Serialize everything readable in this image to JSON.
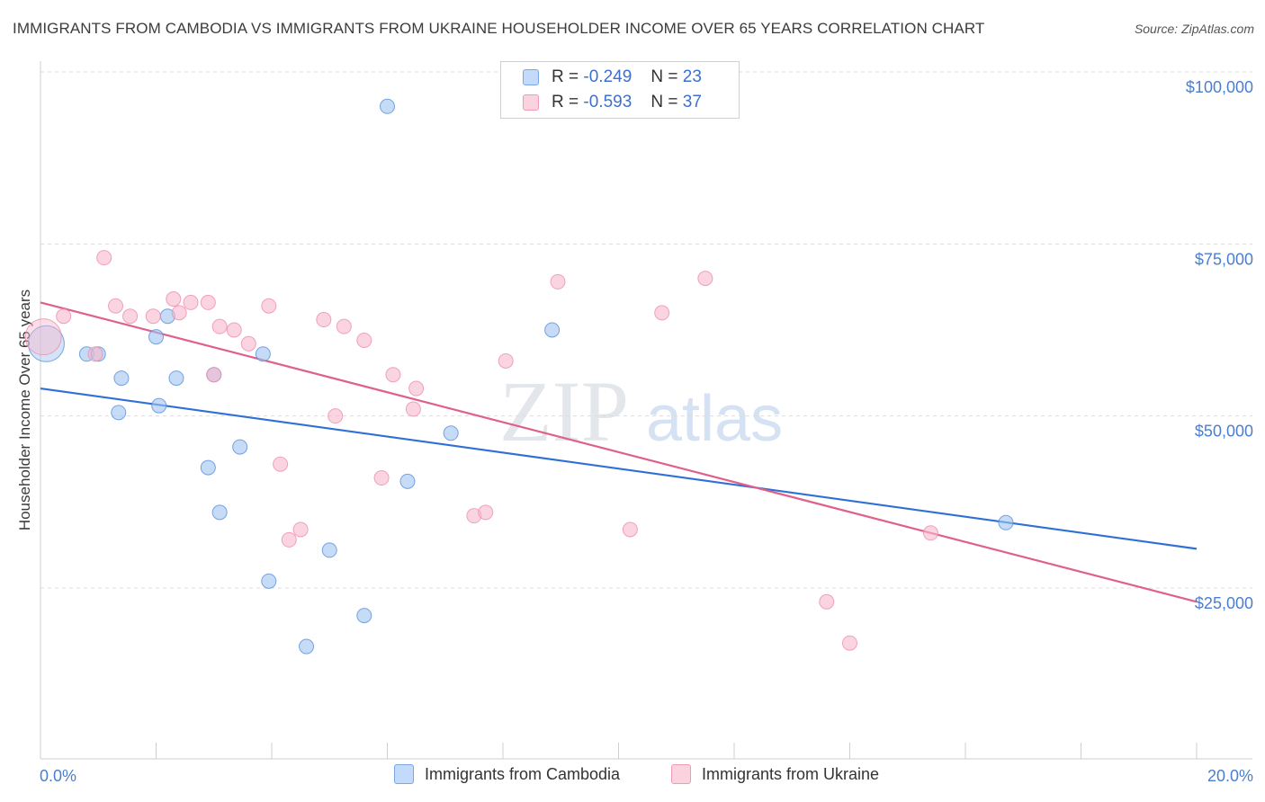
{
  "title": "IMMIGRANTS FROM CAMBODIA VS IMMIGRANTS FROM UKRAINE HOUSEHOLDER INCOME OVER 65 YEARS CORRELATION CHART",
  "source": "Source: ZipAtlas.com",
  "watermark": {
    "zip": "ZIP",
    "atlas": "atlas"
  },
  "legend": {
    "rows": [
      {
        "r_label": "R =",
        "r_value": "-0.249",
        "n_label": "N =",
        "n_value": "23",
        "color": "#9fc3f0",
        "stroke": "#6f9fe0"
      },
      {
        "r_label": "R =",
        "r_value": "-0.593",
        "n_label": "N =",
        "n_value": "37",
        "color": "#f7b8cc",
        "stroke": "#ee8fad"
      }
    ]
  },
  "bottom_legend": {
    "cambodia": "Immigrants from Cambodia",
    "ukraine": "Immigrants from Ukraine"
  },
  "chart_data": {
    "type": "scatter",
    "title": "IMMIGRANTS FROM CAMBODIA VS IMMIGRANTS FROM UKRAINE HOUSEHOLDER INCOME OVER 65 YEARS CORRELATION CHART",
    "xlabel": "",
    "ylabel": "Householder Income Over 65 years",
    "xlim": [
      0,
      20
    ],
    "ylim": [
      0,
      105000
    ],
    "x_tick_labels": [
      "0.0%",
      "20.0%"
    ],
    "y_ticks": [
      25000,
      50000,
      75000,
      100000
    ],
    "y_tick_labels": [
      "$25,000",
      "$50,000",
      "$75,000",
      "$100,000"
    ],
    "grid": true,
    "series": [
      {
        "name": "Immigrants from Cambodia",
        "color": "#9fc3f0",
        "stroke": "#5a8fdc",
        "line_color": "#2f6fd6",
        "trend": {
          "x": [
            0,
            20
          ],
          "y": [
            54000,
            30700
          ]
        },
        "points": [
          {
            "x": 0.1,
            "y": 60500,
            "big": true
          },
          {
            "x": 0.8,
            "y": 59000
          },
          {
            "x": 1.0,
            "y": 59000
          },
          {
            "x": 1.4,
            "y": 55500
          },
          {
            "x": 1.35,
            "y": 50500
          },
          {
            "x": 2.0,
            "y": 61500
          },
          {
            "x": 2.2,
            "y": 64500
          },
          {
            "x": 2.05,
            "y": 51500
          },
          {
            "x": 2.35,
            "y": 55500
          },
          {
            "x": 2.9,
            "y": 42500
          },
          {
            "x": 3.0,
            "y": 56000
          },
          {
            "x": 3.1,
            "y": 36000
          },
          {
            "x": 3.45,
            "y": 45500
          },
          {
            "x": 3.85,
            "y": 59000
          },
          {
            "x": 3.95,
            "y": 26000
          },
          {
            "x": 4.6,
            "y": 16500
          },
          {
            "x": 5.0,
            "y": 30500
          },
          {
            "x": 5.6,
            "y": 21000
          },
          {
            "x": 6.0,
            "y": 95000
          },
          {
            "x": 6.35,
            "y": 40500
          },
          {
            "x": 7.1,
            "y": 47500
          },
          {
            "x": 8.85,
            "y": 62500
          },
          {
            "x": 16.7,
            "y": 34500
          }
        ]
      },
      {
        "name": "Immigrants from Ukraine",
        "color": "#f7b8cc",
        "stroke": "#ee8fad",
        "line_color": "#e0608c",
        "trend": {
          "x": [
            0,
            20
          ],
          "y": [
            66500,
            23000
          ]
        },
        "points": [
          {
            "x": 0.05,
            "y": 61500,
            "big": true
          },
          {
            "x": 0.4,
            "y": 64500
          },
          {
            "x": 0.95,
            "y": 59000
          },
          {
            "x": 1.1,
            "y": 73000
          },
          {
            "x": 1.3,
            "y": 66000
          },
          {
            "x": 1.55,
            "y": 64500
          },
          {
            "x": 1.95,
            "y": 64500
          },
          {
            "x": 2.3,
            "y": 67000
          },
          {
            "x": 2.4,
            "y": 65000
          },
          {
            "x": 2.6,
            "y": 66500
          },
          {
            "x": 2.9,
            "y": 66500
          },
          {
            "x": 3.0,
            "y": 56000
          },
          {
            "x": 3.1,
            "y": 63000
          },
          {
            "x": 3.35,
            "y": 62500
          },
          {
            "x": 3.6,
            "y": 60500
          },
          {
            "x": 3.95,
            "y": 66000
          },
          {
            "x": 4.15,
            "y": 43000
          },
          {
            "x": 4.3,
            "y": 32000
          },
          {
            "x": 4.5,
            "y": 33500
          },
          {
            "x": 4.9,
            "y": 64000
          },
          {
            "x": 5.1,
            "y": 50000
          },
          {
            "x": 5.25,
            "y": 63000
          },
          {
            "x": 5.6,
            "y": 61000
          },
          {
            "x": 5.9,
            "y": 41000
          },
          {
            "x": 6.1,
            "y": 56000
          },
          {
            "x": 6.45,
            "y": 51000
          },
          {
            "x": 6.5,
            "y": 54000
          },
          {
            "x": 7.5,
            "y": 35500
          },
          {
            "x": 7.7,
            "y": 36000
          },
          {
            "x": 8.05,
            "y": 58000
          },
          {
            "x": 8.95,
            "y": 69500
          },
          {
            "x": 10.2,
            "y": 33500
          },
          {
            "x": 10.75,
            "y": 65000
          },
          {
            "x": 11.5,
            "y": 70000
          },
          {
            "x": 13.6,
            "y": 23000
          },
          {
            "x": 14.0,
            "y": 17000
          },
          {
            "x": 15.4,
            "y": 33000
          }
        ]
      }
    ]
  }
}
